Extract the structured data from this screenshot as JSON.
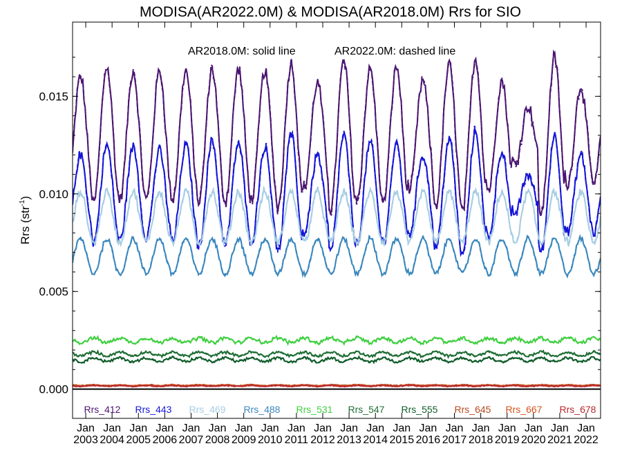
{
  "chart_data": {
    "type": "line",
    "title": "MODISA(AR2022.0M) & MODISA(AR2018.0M)  Rrs for SIO",
    "annotation": {
      "solid": "AR2018.0M: solid line",
      "dashed": "AR2022.0M: dashed line"
    },
    "ylabel": "Rrs (str",
    "ylabel_sup": "-1",
    "ylabel_end": ")",
    "ylim": [
      -0.0015,
      0.0188
    ],
    "xlim": [
      2002.5,
      2022.55
    ],
    "yticks": [
      {
        "value": 0.0,
        "label": "0.000"
      },
      {
        "value": 0.005,
        "label": "0.005"
      },
      {
        "value": 0.01,
        "label": "0.010"
      },
      {
        "value": 0.015,
        "label": "0.015"
      }
    ],
    "xticks": [
      {
        "value": 2003,
        "month": "Jan",
        "year": "2003"
      },
      {
        "value": 2004,
        "month": "Jan",
        "year": "2004"
      },
      {
        "value": 2005,
        "month": "Jan",
        "year": "2005"
      },
      {
        "value": 2006,
        "month": "Jan",
        "year": "2006"
      },
      {
        "value": 2007,
        "month": "Jan",
        "year": "2007"
      },
      {
        "value": 2008,
        "month": "Jan",
        "year": "2008"
      },
      {
        "value": 2009,
        "month": "Jan",
        "year": "2009"
      },
      {
        "value": 2010,
        "month": "Jan",
        "year": "2010"
      },
      {
        "value": 2011,
        "month": "Jan",
        "year": "2011"
      },
      {
        "value": 2012,
        "month": "Jan",
        "year": "2012"
      },
      {
        "value": 2013,
        "month": "Jan",
        "year": "2013"
      },
      {
        "value": 2014,
        "month": "Jan",
        "year": "2014"
      },
      {
        "value": 2015,
        "month": "Jan",
        "year": "2015"
      },
      {
        "value": 2016,
        "month": "Jan",
        "year": "2016"
      },
      {
        "value": 2017,
        "month": "Jan",
        "year": "2017"
      },
      {
        "value": 2018,
        "month": "Jan",
        "year": "2018"
      },
      {
        "value": 2019,
        "month": "Jan",
        "year": "2019"
      },
      {
        "value": 2020,
        "month": "Jan",
        "year": "2020"
      },
      {
        "value": 2021,
        "month": "Jan",
        "year": "2021"
      },
      {
        "value": 2022,
        "month": "Jan",
        "year": "2022"
      }
    ],
    "legend_placement": "bottom",
    "zero_line": true,
    "series": [
      {
        "name": "Rrs_412",
        "color": "#4b1672",
        "base": 0.013,
        "amp": 0.003,
        "phase": 0.8,
        "noise": 0.0003,
        "peaks": [
          0.016,
          0.0165,
          0.0163,
          0.0163,
          0.0163,
          0.0164,
          0.0164,
          0.0163,
          0.0167,
          0.0157,
          0.0168,
          0.0164,
          0.0165,
          0.0158,
          0.0166,
          0.0169,
          0.0158,
          0.0145,
          0.017,
          0.0155
        ]
      },
      {
        "name": "Rrs_443",
        "color": "#1515d8",
        "base": 0.01,
        "amp": 0.0023,
        "phase": 0.8,
        "noise": 0.00025,
        "peaks": [
          0.012,
          0.0125,
          0.0124,
          0.0122,
          0.0125,
          0.0127,
          0.0126,
          0.0124,
          0.013,
          0.012,
          0.013,
          0.0126,
          0.0125,
          0.012,
          0.0128,
          0.0132,
          0.0122,
          0.011,
          0.013,
          0.012
        ]
      },
      {
        "name": "Rrs_469",
        "color": "#a6cde3",
        "base": 0.0088,
        "amp": 0.0013,
        "phase": 0.8,
        "noise": 0.00018,
        "peaks": []
      },
      {
        "name": "Rrs_488",
        "color": "#3a87bd",
        "base": 0.0068,
        "amp": 0.0009,
        "phase": 0.8,
        "noise": 0.00012,
        "peaks": []
      },
      {
        "name": "Rrs_531",
        "color": "#3fcf3f",
        "base": 0.0025,
        "amp": 0.00012,
        "phase": 0.3,
        "noise": 8e-05,
        "peaks": []
      },
      {
        "name": "Rrs_547",
        "color": "#1e6e35",
        "base": 0.0018,
        "amp": 0.0001,
        "phase": 0.3,
        "noise": 6e-05,
        "peaks": []
      },
      {
        "name": "Rrs_555",
        "color": "#0f5c2a",
        "base": 0.0015,
        "amp": 0.0001,
        "phase": 0.3,
        "noise": 6e-05,
        "peaks": []
      },
      {
        "name": "Rrs_645",
        "color": "#b64a1f",
        "base": 0.0002,
        "amp": 2e-05,
        "phase": 0.3,
        "noise": 2e-05,
        "peaks": []
      },
      {
        "name": "Rrs_667",
        "color": "#d4521b",
        "base": 0.00018,
        "amp": 2e-05,
        "phase": 0.3,
        "noise": 2e-05,
        "peaks": []
      },
      {
        "name": "Rrs_678",
        "color": "#b8282d",
        "base": 0.00016,
        "amp": 2e-05,
        "phase": 0.3,
        "noise": 2e-05,
        "peaks": []
      }
    ]
  }
}
